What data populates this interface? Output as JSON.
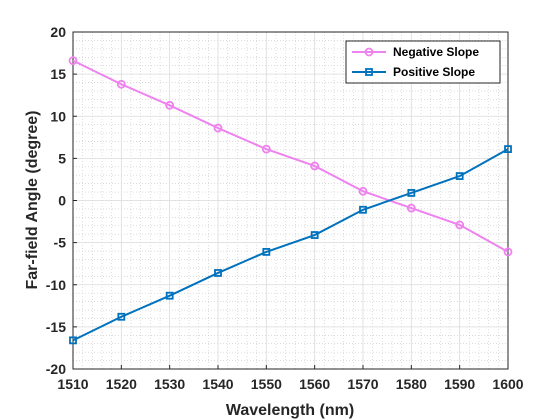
{
  "chart_data": {
    "type": "line",
    "title": "",
    "xlabel": "Wavelength (nm)",
    "ylabel": "Far-field Angle (degree)",
    "xlim": [
      1510,
      1600
    ],
    "ylim": [
      -20,
      20
    ],
    "x_ticks": [
      1510,
      1520,
      1530,
      1540,
      1550,
      1560,
      1570,
      1580,
      1590,
      1600
    ],
    "y_ticks": [
      -20,
      -15,
      -10,
      -5,
      0,
      5,
      10,
      15,
      20
    ],
    "grid": true,
    "minor_grid": true,
    "legend_position": "top-right",
    "x": [
      1510,
      1520,
      1530,
      1540,
      1550,
      1560,
      1570,
      1580,
      1590,
      1600
    ],
    "series": [
      {
        "name": "Negative Slope",
        "color": "#ee82ee",
        "marker": "circle",
        "values": [
          16.6,
          13.8,
          11.3,
          8.6,
          6.1,
          4.1,
          1.1,
          -0.9,
          -2.9,
          -6.1
        ]
      },
      {
        "name": "Positive Slope",
        "color": "#0072bd",
        "marker": "square",
        "values": [
          -16.6,
          -13.8,
          -11.3,
          -8.6,
          -6.1,
          -4.1,
          -1.1,
          0.9,
          2.9,
          6.1
        ]
      }
    ]
  }
}
